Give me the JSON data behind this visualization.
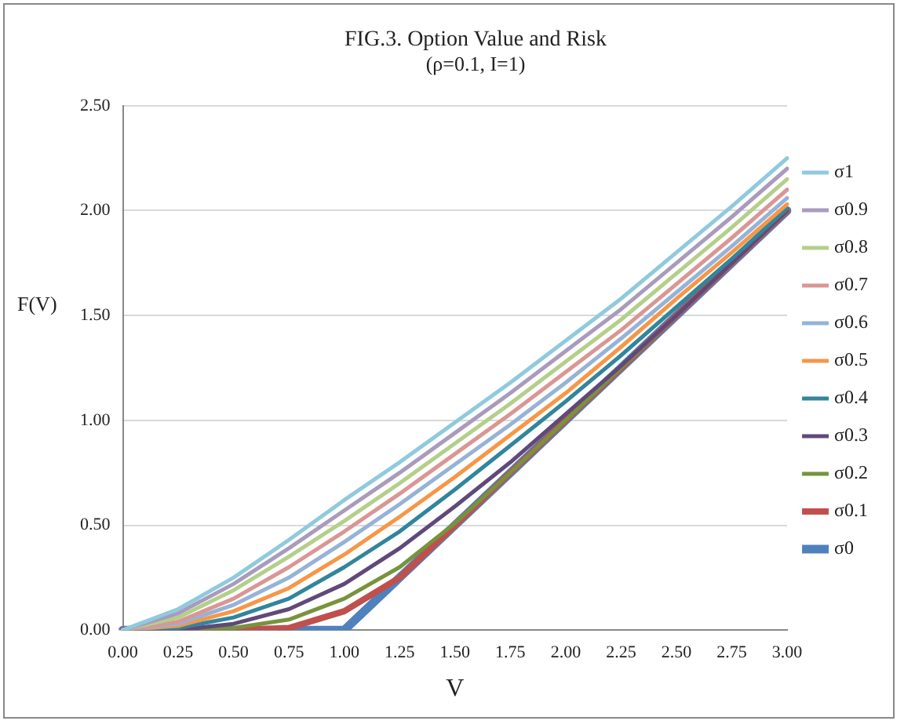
{
  "chart_data": {
    "type": "line",
    "title": "FIG.3. Option Value and Risk",
    "subtitle": "(ρ=0.1, I=1)",
    "xlabel": "V",
    "ylabel": "F(V)",
    "categories": [
      "0.00",
      "0.25",
      "0.50",
      "0.75",
      "1.00",
      "1.25",
      "1.50",
      "1.75",
      "2.00",
      "2.25",
      "2.50",
      "2.75",
      "3.00"
    ],
    "ylim": [
      0,
      2.5
    ],
    "yticks": [
      {
        "value": 0,
        "label": "0.00"
      },
      {
        "value": 0.5,
        "label": "0.50"
      },
      {
        "value": 1,
        "label": "1.00"
      },
      {
        "value": 1.5,
        "label": "1.50"
      },
      {
        "value": 2,
        "label": "2.00"
      },
      {
        "value": 2.5,
        "label": "2.50"
      }
    ],
    "grid": "y",
    "legend": "right",
    "marker": "none",
    "line_style": "solid",
    "series": [
      {
        "name": "σ1",
        "color": "#8fcadd",
        "values": [
          0,
          0.1,
          0.25,
          0.43,
          0.62,
          0.8,
          0.99,
          1.18,
          1.38,
          1.58,
          1.8,
          2.02,
          2.25
        ]
      },
      {
        "name": "σ0.9",
        "color": "#a99bbd",
        "values": [
          0,
          0.08,
          0.22,
          0.39,
          0.57,
          0.75,
          0.94,
          1.13,
          1.33,
          1.53,
          1.75,
          1.97,
          2.2
        ]
      },
      {
        "name": "σ0.8",
        "color": "#b3cf8a",
        "values": [
          0,
          0.06,
          0.19,
          0.35,
          0.52,
          0.7,
          0.89,
          1.08,
          1.28,
          1.48,
          1.7,
          1.92,
          2.15
        ]
      },
      {
        "name": "σ0.7",
        "color": "#da9694",
        "values": [
          0,
          0.04,
          0.15,
          0.3,
          0.47,
          0.65,
          0.84,
          1.03,
          1.23,
          1.43,
          1.65,
          1.87,
          2.1
        ]
      },
      {
        "name": "σ0.6",
        "color": "#95b3d7",
        "values": [
          0,
          0.03,
          0.12,
          0.25,
          0.42,
          0.6,
          0.79,
          0.98,
          1.18,
          1.39,
          1.61,
          1.83,
          2.06
        ]
      },
      {
        "name": "σ0.5",
        "color": "#f79646",
        "values": [
          0,
          0.02,
          0.09,
          0.2,
          0.36,
          0.54,
          0.73,
          0.93,
          1.13,
          1.35,
          1.58,
          1.8,
          2.03
        ]
      },
      {
        "name": "σ0.4",
        "color": "#31859c",
        "values": [
          0,
          0.01,
          0.06,
          0.15,
          0.3,
          0.47,
          0.67,
          0.88,
          1.09,
          1.31,
          1.54,
          1.77,
          2.01
        ]
      },
      {
        "name": "σ0.3",
        "color": "#60497a",
        "values": [
          0,
          0,
          0.03,
          0.1,
          0.22,
          0.39,
          0.59,
          0.8,
          1.03,
          1.26,
          1.5,
          1.75,
          2
        ]
      },
      {
        "name": "σ0.2",
        "color": "#77933c",
        "values": [
          0,
          0,
          0.01,
          0.05,
          0.15,
          0.3,
          0.51,
          0.75,
          1,
          1.25,
          1.5,
          1.75,
          2
        ]
      },
      {
        "name": "σ0.1",
        "color": "#c0504d",
        "values": [
          0,
          0,
          0,
          0.01,
          0.09,
          0.25,
          0.5,
          0.75,
          1,
          1.25,
          1.5,
          1.75,
          2
        ]
      },
      {
        "name": "σ0",
        "color": "#4f81bd",
        "values": [
          0,
          0,
          0,
          0,
          0,
          0.25,
          0.5,
          0.75,
          1,
          1.25,
          1.5,
          1.75,
          2
        ]
      }
    ]
  }
}
